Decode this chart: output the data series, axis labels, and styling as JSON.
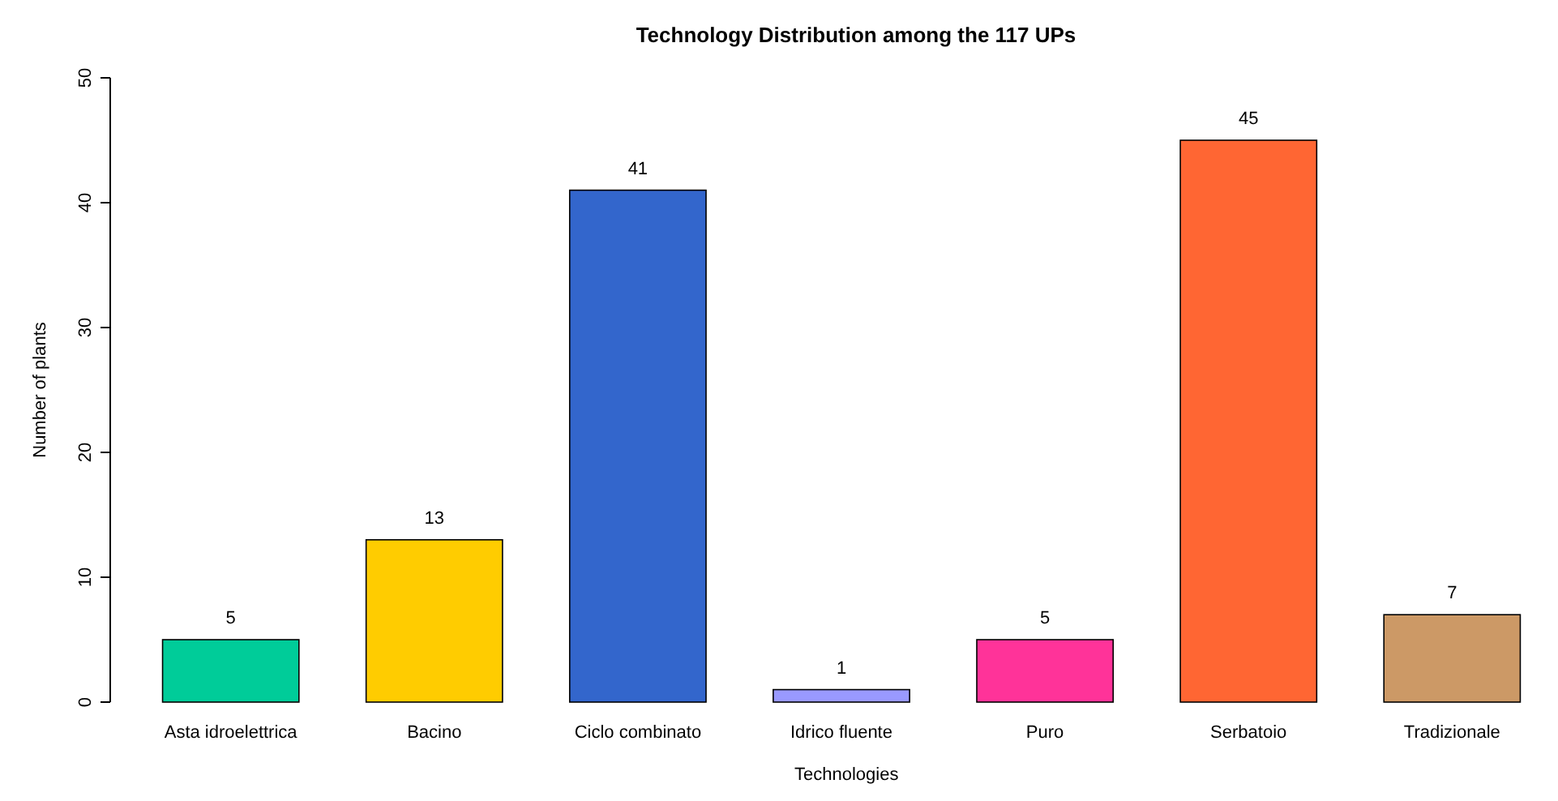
{
  "chart_data": {
    "type": "bar",
    "title": "Technology Distribution among the 117 UPs",
    "xlabel": "Technologies",
    "ylabel": "Number of plants",
    "categories": [
      "Asta idroelettrica",
      "Bacino",
      "Ciclo combinato",
      "Idrico fluente",
      "Puro",
      "Serbatoio",
      "Tradizionale"
    ],
    "values": [
      5,
      13,
      41,
      1,
      5,
      45,
      7
    ],
    "colors": [
      "#00cc99",
      "#ffcc00",
      "#3366cc",
      "#9999ff",
      "#ff3399",
      "#ff6633",
      "#cc9966"
    ],
    "ylim": [
      0,
      50
    ],
    "yticks": [
      0,
      10,
      20,
      30,
      40,
      50
    ],
    "data_labels": true,
    "grid": false
  }
}
